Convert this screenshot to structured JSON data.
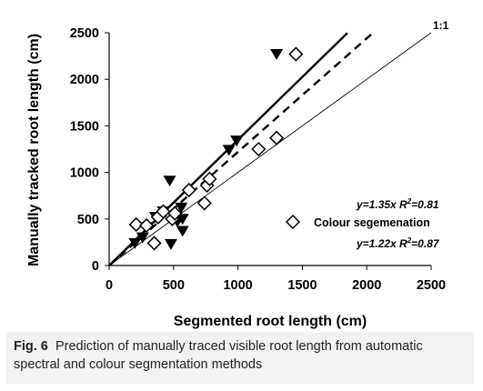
{
  "chart_data": {
    "type": "scatter",
    "xlabel": "Segmented root length (cm)",
    "ylabel": "Manually tracked root length (cm)",
    "xlim": [
      0,
      2500
    ],
    "ylim": [
      0,
      2500
    ],
    "xticks": [
      "0",
      "500",
      "1000",
      "1500",
      "2000",
      "2500"
    ],
    "yticks": [
      "0",
      "500",
      "1000",
      "1500",
      "2000",
      "2500"
    ],
    "grid": false,
    "series": [
      {
        "marker": "filled-down-triangle",
        "color": "#000000",
        "points": [
          [
            200,
            240
          ],
          [
            260,
            300
          ],
          [
            290,
            410
          ],
          [
            360,
            520
          ],
          [
            420,
            580
          ],
          [
            470,
            910
          ],
          [
            480,
            230
          ],
          [
            530,
            470
          ],
          [
            560,
            620
          ],
          [
            570,
            370
          ],
          [
            570,
            500
          ],
          [
            930,
            1240
          ],
          [
            990,
            1340
          ],
          [
            1300,
            2270
          ]
        ]
      },
      {
        "name": "Colour segemenation",
        "marker": "open-diamond",
        "color": "#000000",
        "points": [
          [
            210,
            440
          ],
          [
            290,
            430
          ],
          [
            350,
            240
          ],
          [
            380,
            520
          ],
          [
            420,
            580
          ],
          [
            490,
            500
          ],
          [
            510,
            560
          ],
          [
            620,
            810
          ],
          [
            740,
            670
          ],
          [
            760,
            860
          ],
          [
            780,
            930
          ],
          [
            1160,
            1250
          ],
          [
            1300,
            1370
          ],
          [
            1450,
            2270
          ]
        ]
      }
    ],
    "lines": [
      {
        "label": "1:1",
        "slope": 1.0,
        "style": "thin-solid",
        "x_end": 2500
      },
      {
        "slope": 1.35,
        "style": "thick-solid",
        "x_end": 1850
      },
      {
        "slope": 1.22,
        "style": "thick-dashed",
        "x_end": 2060
      }
    ],
    "annotations": {
      "eq1_prefix": "y=1.35x R",
      "eq1_suffix": "=0.81",
      "eq2_prefix": "y=1.22x R",
      "eq2_suffix": "=0.87",
      "superscript": "2",
      "one_to_one": "1:1"
    },
    "legend": {
      "label": "Colour segemenation",
      "position": "middle-right"
    }
  },
  "caption": {
    "label": "Fig. 6",
    "text": "Prediction of manually traced visible root length from automatic spectral and colour segmentation methods"
  }
}
